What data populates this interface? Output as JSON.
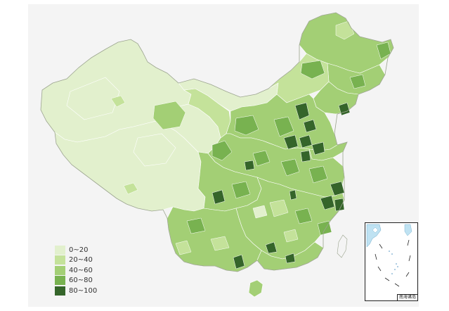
{
  "legend": [
    {
      "label": "0~20",
      "color": "#e2f0cd"
    },
    {
      "label": "20~40",
      "color": "#c4e29a"
    },
    {
      "label": "40~60",
      "color": "#a3cf75"
    },
    {
      "label": "60~80",
      "color": "#78b250"
    },
    {
      "label": "80~100",
      "color": "#35652a"
    }
  ],
  "inset": {
    "label": "南海诸岛"
  },
  "colors": {
    "background": "#f4f4f4",
    "border": "#ffffff",
    "outline": "#9aa38d",
    "sea": "#bfe2f2"
  }
}
